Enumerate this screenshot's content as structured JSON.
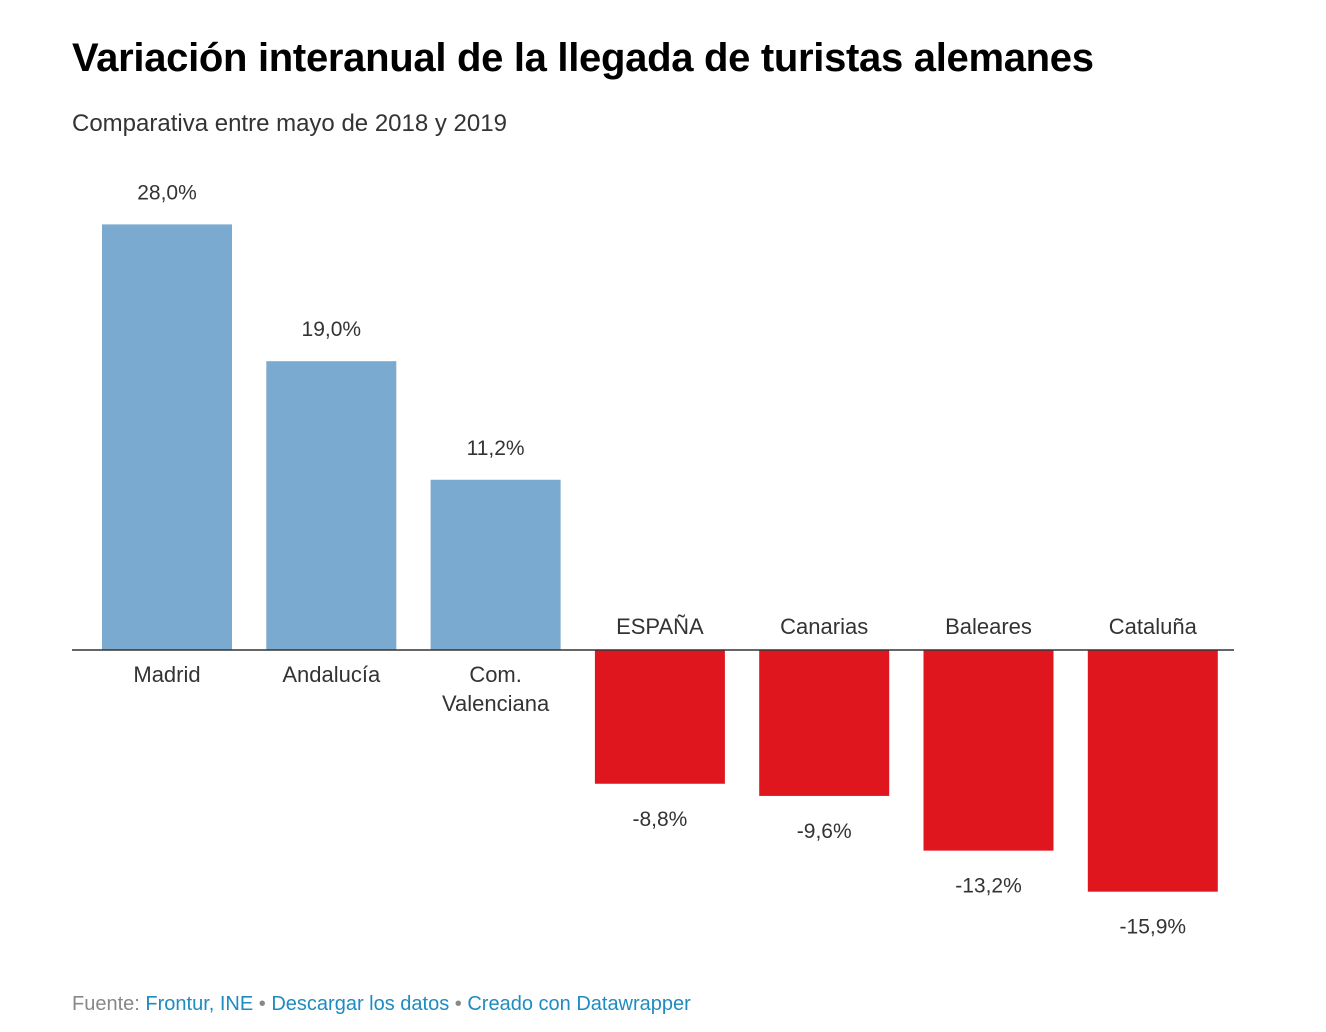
{
  "header": {
    "title": "Variación interanual de la llegada de turistas alemanes",
    "subtitle": "Comparativa entre mayo de 2018 y 2019"
  },
  "chart_data": {
    "type": "bar",
    "title": "Variación interanual de la llegada de turistas alemanes",
    "subtitle": "Comparativa entre mayo de 2018 y 2019",
    "xlabel": "",
    "ylabel": "",
    "categories": [
      [
        "Madrid"
      ],
      [
        "Andalucía"
      ],
      [
        "Com.",
        "Valenciana"
      ],
      [
        "ESPAÑA"
      ],
      [
        "Canarias"
      ],
      [
        "Baleares"
      ],
      [
        "Cataluña"
      ]
    ],
    "values": [
      28.0,
      19.0,
      11.2,
      -8.8,
      -9.6,
      -13.2,
      -15.9
    ],
    "value_labels": [
      "28,0%",
      "19,0%",
      "11,2%",
      "-8,8%",
      "-9,6%",
      "-13,2%",
      "-15,9%"
    ],
    "ylim": [
      -15.9,
      28.0
    ],
    "grid": false,
    "colors": {
      "positive": "#7aaacf",
      "negative": "#e0161e",
      "baseline": "#333333",
      "label": "#333333"
    }
  },
  "footer": {
    "source_label": "Fuente:",
    "source_link": "Frontur, INE",
    "separator": "•",
    "download_link": "Descargar los datos",
    "credit_link": "Creado con Datawrapper"
  }
}
